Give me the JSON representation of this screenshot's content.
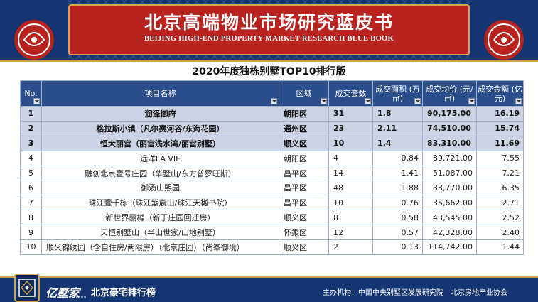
{
  "header": {
    "title_cn": "北京高端物业市场研究蓝皮书",
    "title_en": "BEIJING HIGH-END PROPERTY MARKET RESEARCH BLUE BOOK"
  },
  "table": {
    "title": "2020年度独栋别墅TOP10排行版",
    "columns": [
      {
        "label": "No."
      },
      {
        "label": "项目名称"
      },
      {
        "label": "区域"
      },
      {
        "label": "成交套数"
      },
      {
        "label": "成交面积 (万㎡)"
      },
      {
        "label": "成交均价 (元/㎡)"
      },
      {
        "label": "成交金额 (亿元)"
      }
    ],
    "rows": [
      {
        "no": "1",
        "name": "润泽御府",
        "district": "朝阳区",
        "units": "31",
        "area": "1.8",
        "price": "90,175.00",
        "amount": "16.19"
      },
      {
        "no": "2",
        "name": "格拉斯小镇（凡尔赛河谷/东海花园）",
        "district": "通州区",
        "units": "23",
        "area": "2.11",
        "price": "74,510.00",
        "amount": "15.74"
      },
      {
        "no": "3",
        "name": "恒大丽宫（丽宫浅水湾/丽宫别墅）",
        "district": "顺义区",
        "units": "10",
        "area": "1.4",
        "price": "83,310.00",
        "amount": "11.69"
      },
      {
        "no": "4",
        "name": "远洋LA VIE",
        "district": "朝阳区",
        "units": "4",
        "area": "0.84",
        "price": "89,721.00",
        "amount": "7.55"
      },
      {
        "no": "5",
        "name": "融创北京壹号庄园（华墅山/东方普罗旺斯）",
        "district": "昌平区",
        "units": "14",
        "area": "1.41",
        "price": "51,087.00",
        "amount": "7.21"
      },
      {
        "no": "6",
        "name": "御汤山熙园",
        "district": "昌平区",
        "units": "48",
        "area": "1.88",
        "price": "33,770.00",
        "amount": "6.35"
      },
      {
        "no": "7",
        "name": "珠江壹千栋（珠江紫宸山/珠江天樾书院）",
        "district": "昌平区",
        "units": "10",
        "area": "0.76",
        "price": "35,662.00",
        "amount": "2.71"
      },
      {
        "no": "8",
        "name": "新世界丽樽（新于庄园回迁房）",
        "district": "顺义区",
        "units": "8",
        "area": "0.58",
        "price": "43,545.00",
        "amount": "2.52"
      },
      {
        "no": "9",
        "name": "天恒别墅山（半山世家/山地别墅）",
        "district": "怀柔区",
        "units": "12",
        "area": "0.57",
        "price": "42,328.00",
        "amount": "2.40"
      },
      {
        "no": "10",
        "name": "顺义锦绣园（含自住房/两限房）（北京庄园）（尚峯御境）",
        "district": "顺义区",
        "units": "2",
        "area": "0.13",
        "price": "114,742.00",
        "amount": "1.44"
      }
    ]
  },
  "footer": {
    "brand": "亿墅家",
    "brand_sub": "BILLIONAIRE CLUB",
    "title": "北京豪宅排行榜",
    "org": "主办机构：中国中央别墅区发展研究院　北京房地产业协会"
  },
  "colors": {
    "navy": "#143572",
    "banner_red": "#b8231f",
    "gold": "#c9a24a",
    "header_cell": "#2a4e8c",
    "highlight_row": "#cbd3e5"
  }
}
